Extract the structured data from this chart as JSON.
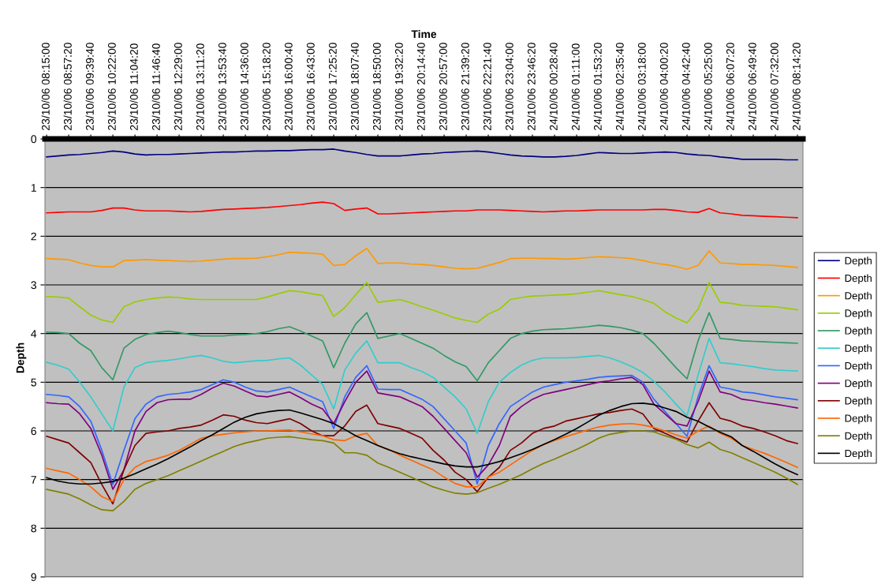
{
  "chart_data": {
    "type": "line",
    "xlabel": "Time",
    "ylabel": "Depth",
    "categories": [
      "23/10/06 08:15:00",
      null,
      "23/10/06 08:57:20",
      null,
      "23/10/06 09:39:40",
      null,
      "23/10/06 10:22:00",
      null,
      "23/10/06 11:04:20",
      null,
      "23/10/06 11:46:40",
      null,
      "23/10/06 12:29:00",
      null,
      "23/10/06 13:11:20",
      null,
      "23/10/06 13:53:40",
      null,
      "23/10/06 14:36:00",
      null,
      "23/10/06 15:18:20",
      null,
      "23/10/06 16:00:40",
      null,
      "23/10/06 16:43:00",
      null,
      "23/10/06 17:25:20",
      null,
      "23/10/06 18:07:40",
      null,
      "23/10/06 18:50:00",
      null,
      "23/10/06 19:32:20",
      null,
      "23/10/06 20:14:40",
      null,
      "23/10/06 20:57:00",
      null,
      "23/10/06 21:39:20",
      null,
      "23/10/06 22:21:40",
      null,
      "23/10/06 23:04:00",
      null,
      "23/10/06 23:46:20",
      null,
      "24/10/06 00:28:40",
      null,
      "24/10/06 01:11:00",
      null,
      "24/10/06 01:53:20",
      null,
      "24/10/06 02:35:40",
      null,
      "24/10/06 03:18:00",
      null,
      "24/10/06 04:00:20",
      null,
      "24/10/06 04:42:40",
      null,
      "24/10/06 05:25:00",
      null,
      "24/10/06 06:07:20",
      null,
      "24/10/06 06:49:40",
      null,
      "24/10/06 07:32:00",
      null,
      "24/10/06 08:14:20"
    ],
    "ylim": [
      9,
      0
    ],
    "yticks": [
      0,
      1,
      2,
      3,
      4,
      5,
      6,
      7,
      8,
      9
    ],
    "grid": "y",
    "legend": "right",
    "marker": "none",
    "line_style": "solid",
    "series": [
      {
        "name": "Depth",
        "color": "#000080",
        "values": [
          0.37,
          0.35,
          0.33,
          0.32,
          0.3,
          0.28,
          0.25,
          0.27,
          0.31,
          0.33,
          0.32,
          0.32,
          0.31,
          0.3,
          0.29,
          0.28,
          0.27,
          0.27,
          0.26,
          0.25,
          0.25,
          0.24,
          0.24,
          0.23,
          0.22,
          0.22,
          0.21,
          0.25,
          0.28,
          0.32,
          0.35,
          0.35,
          0.35,
          0.33,
          0.31,
          0.3,
          0.28,
          0.27,
          0.26,
          0.25,
          0.27,
          0.3,
          0.33,
          0.35,
          0.36,
          0.37,
          0.37,
          0.36,
          0.34,
          0.31,
          0.28,
          0.29,
          0.3,
          0.3,
          0.29,
          0.28,
          0.27,
          0.28,
          0.31,
          0.33,
          0.34,
          0.37,
          0.39,
          0.42,
          0.42,
          0.42,
          0.42,
          0.43,
          0.43
        ]
      },
      {
        "name": "Depth",
        "color": "#ff0000",
        "values": [
          1.52,
          1.51,
          1.5,
          1.5,
          1.5,
          1.47,
          1.42,
          1.42,
          1.46,
          1.48,
          1.48,
          1.48,
          1.49,
          1.5,
          1.49,
          1.47,
          1.45,
          1.44,
          1.43,
          1.42,
          1.41,
          1.39,
          1.37,
          1.35,
          1.32,
          1.3,
          1.33,
          1.47,
          1.44,
          1.42,
          1.54,
          1.54,
          1.53,
          1.52,
          1.51,
          1.5,
          1.49,
          1.48,
          1.48,
          1.46,
          1.46,
          1.46,
          1.47,
          1.48,
          1.49,
          1.5,
          1.49,
          1.48,
          1.48,
          1.47,
          1.46,
          1.46,
          1.46,
          1.46,
          1.46,
          1.45,
          1.45,
          1.47,
          1.5,
          1.51,
          1.43,
          1.52,
          1.54,
          1.57,
          1.58,
          1.59,
          1.6,
          1.61,
          1.62
        ]
      },
      {
        "name": "Depth",
        "color": "#ff9900",
        "values": [
          2.46,
          2.47,
          2.48,
          2.55,
          2.6,
          2.63,
          2.63,
          2.5,
          2.49,
          2.48,
          2.49,
          2.5,
          2.51,
          2.52,
          2.51,
          2.49,
          2.47,
          2.46,
          2.46,
          2.45,
          2.42,
          2.38,
          2.33,
          2.34,
          2.35,
          2.37,
          2.6,
          2.58,
          2.4,
          2.25,
          2.56,
          2.55,
          2.55,
          2.57,
          2.58,
          2.6,
          2.63,
          2.66,
          2.67,
          2.66,
          2.6,
          2.54,
          2.46,
          2.45,
          2.45,
          2.46,
          2.46,
          2.47,
          2.46,
          2.44,
          2.42,
          2.43,
          2.44,
          2.46,
          2.5,
          2.55,
          2.58,
          2.62,
          2.68,
          2.6,
          2.3,
          2.55,
          2.56,
          2.58,
          2.58,
          2.59,
          2.6,
          2.62,
          2.64
        ]
      },
      {
        "name": "Depth",
        "color": "#99cc00",
        "values": [
          3.24,
          3.25,
          3.27,
          3.45,
          3.62,
          3.72,
          3.77,
          3.45,
          3.35,
          3.3,
          3.27,
          3.25,
          3.26,
          3.29,
          3.3,
          3.3,
          3.3,
          3.3,
          3.3,
          3.3,
          3.25,
          3.18,
          3.12,
          3.14,
          3.18,
          3.22,
          3.65,
          3.47,
          3.2,
          2.95,
          3.36,
          3.33,
          3.3,
          3.37,
          3.45,
          3.52,
          3.6,
          3.68,
          3.73,
          3.77,
          3.6,
          3.5,
          3.3,
          3.26,
          3.23,
          3.22,
          3.21,
          3.2,
          3.18,
          3.15,
          3.12,
          3.16,
          3.2,
          3.24,
          3.3,
          3.38,
          3.55,
          3.68,
          3.78,
          3.5,
          2.95,
          3.36,
          3.38,
          3.42,
          3.43,
          3.44,
          3.45,
          3.48,
          3.51
        ]
      },
      {
        "name": "Depth",
        "color": "#339966",
        "values": [
          3.97,
          3.98,
          4.0,
          4.2,
          4.35,
          4.7,
          4.95,
          4.3,
          4.12,
          4.02,
          3.98,
          3.95,
          3.98,
          4.02,
          4.05,
          4.05,
          4.05,
          4.03,
          4.02,
          4.0,
          3.96,
          3.9,
          3.86,
          3.95,
          4.05,
          4.15,
          4.7,
          4.2,
          3.8,
          3.57,
          4.1,
          4.05,
          4.0,
          4.1,
          4.2,
          4.3,
          4.45,
          4.58,
          4.68,
          4.97,
          4.6,
          4.35,
          4.1,
          4.0,
          3.95,
          3.92,
          3.91,
          3.9,
          3.88,
          3.86,
          3.83,
          3.85,
          3.88,
          3.93,
          4.0,
          4.2,
          4.45,
          4.7,
          4.93,
          4.15,
          3.57,
          4.1,
          4.12,
          4.15,
          4.16,
          4.17,
          4.18,
          4.19,
          4.2
        ]
      },
      {
        "name": "Depth",
        "color": "#33cccc",
        "values": [
          4.59,
          4.65,
          4.73,
          5.0,
          5.3,
          5.65,
          6.0,
          5.1,
          4.7,
          4.6,
          4.57,
          4.55,
          4.52,
          4.48,
          4.45,
          4.5,
          4.57,
          4.6,
          4.58,
          4.56,
          4.55,
          4.52,
          4.5,
          4.65,
          4.85,
          5.05,
          5.55,
          4.75,
          4.4,
          4.15,
          4.6,
          4.6,
          4.6,
          4.7,
          4.78,
          4.9,
          5.1,
          5.3,
          5.55,
          6.05,
          5.4,
          5.0,
          4.8,
          4.65,
          4.55,
          4.5,
          4.5,
          4.5,
          4.49,
          4.47,
          4.45,
          4.5,
          4.58,
          4.68,
          4.8,
          4.98,
          5.2,
          5.45,
          5.69,
          4.85,
          4.1,
          4.6,
          4.62,
          4.65,
          4.68,
          4.72,
          4.75,
          4.76,
          4.77
        ]
      },
      {
        "name": "Depth",
        "color": "#3366ff",
        "values": [
          5.25,
          5.27,
          5.3,
          5.5,
          5.8,
          6.4,
          7.1,
          6.4,
          5.75,
          5.45,
          5.3,
          5.25,
          5.23,
          5.2,
          5.15,
          5.05,
          4.95,
          5.0,
          5.1,
          5.18,
          5.2,
          5.15,
          5.1,
          5.2,
          5.3,
          5.4,
          5.95,
          5.3,
          4.9,
          4.66,
          5.14,
          5.15,
          5.15,
          5.25,
          5.35,
          5.5,
          5.75,
          6.0,
          6.25,
          7.09,
          6.3,
          5.85,
          5.5,
          5.35,
          5.2,
          5.1,
          5.05,
          5.0,
          4.97,
          4.94,
          4.9,
          4.88,
          4.87,
          4.86,
          5.0,
          5.35,
          5.6,
          5.85,
          6.11,
          5.3,
          4.66,
          5.1,
          5.14,
          5.2,
          5.22,
          5.26,
          5.3,
          5.33,
          5.36
        ]
      },
      {
        "name": "Depth",
        "color": "#800080",
        "values": [
          5.42,
          5.44,
          5.45,
          5.65,
          5.95,
          6.5,
          7.2,
          6.8,
          6.0,
          5.6,
          5.42,
          5.36,
          5.35,
          5.35,
          5.25,
          5.12,
          5.02,
          5.08,
          5.18,
          5.28,
          5.3,
          5.25,
          5.2,
          5.32,
          5.45,
          5.55,
          5.85,
          5.4,
          5.0,
          4.77,
          5.22,
          5.26,
          5.3,
          5.4,
          5.5,
          5.7,
          5.95,
          6.2,
          6.45,
          6.95,
          6.7,
          6.3,
          5.7,
          5.5,
          5.35,
          5.25,
          5.2,
          5.15,
          5.1,
          5.05,
          5.0,
          4.97,
          4.93,
          4.9,
          5.05,
          5.45,
          5.65,
          5.85,
          5.9,
          5.4,
          4.77,
          5.2,
          5.25,
          5.35,
          5.38,
          5.42,
          5.45,
          5.49,
          5.53
        ]
      },
      {
        "name": "Depth",
        "color": "#800000",
        "values": [
          6.11,
          6.18,
          6.25,
          6.45,
          6.65,
          7.1,
          7.5,
          6.8,
          6.3,
          6.05,
          6.02,
          6.0,
          5.95,
          5.92,
          5.88,
          5.78,
          5.67,
          5.7,
          5.78,
          5.83,
          5.85,
          5.8,
          5.75,
          5.85,
          6.0,
          6.1,
          6.1,
          5.9,
          5.6,
          5.47,
          5.85,
          5.9,
          5.95,
          6.05,
          6.15,
          6.4,
          6.6,
          6.85,
          7.0,
          7.25,
          6.95,
          6.75,
          6.4,
          6.25,
          6.05,
          5.95,
          5.9,
          5.8,
          5.75,
          5.7,
          5.65,
          5.62,
          5.58,
          5.55,
          5.65,
          5.95,
          6.05,
          6.15,
          6.23,
          5.8,
          5.42,
          5.74,
          5.8,
          5.9,
          5.95,
          6.02,
          6.1,
          6.2,
          6.26
        ]
      },
      {
        "name": "Depth",
        "color": "#ff6600",
        "values": [
          6.77,
          6.82,
          6.87,
          7.0,
          7.15,
          7.35,
          7.45,
          7.0,
          6.75,
          6.63,
          6.57,
          6.5,
          6.4,
          6.28,
          6.15,
          6.1,
          6.07,
          6.04,
          6.02,
          6.0,
          6.0,
          5.99,
          5.98,
          6.02,
          6.06,
          6.1,
          6.18,
          6.2,
          6.1,
          6.05,
          6.3,
          6.38,
          6.5,
          6.6,
          6.7,
          6.8,
          6.95,
          7.08,
          7.15,
          7.15,
          6.95,
          6.85,
          6.7,
          6.55,
          6.4,
          6.28,
          6.2,
          6.12,
          6.05,
          5.98,
          5.92,
          5.88,
          5.86,
          5.85,
          5.88,
          5.93,
          6.0,
          6.08,
          6.15,
          6.0,
          5.9,
          6.05,
          6.15,
          6.3,
          6.38,
          6.46,
          6.55,
          6.65,
          6.75
        ]
      },
      {
        "name": "Depth",
        "color": "#808000",
        "values": [
          7.2,
          7.25,
          7.3,
          7.4,
          7.52,
          7.62,
          7.64,
          7.45,
          7.2,
          7.08,
          7.0,
          6.92,
          6.82,
          6.72,
          6.62,
          6.52,
          6.42,
          6.32,
          6.25,
          6.2,
          6.15,
          6.13,
          6.12,
          6.15,
          6.18,
          6.2,
          6.25,
          6.45,
          6.45,
          6.5,
          6.66,
          6.75,
          6.85,
          6.95,
          7.05,
          7.15,
          7.22,
          7.28,
          7.3,
          7.27,
          7.18,
          7.1,
          7.0,
          6.9,
          6.78,
          6.67,
          6.58,
          6.48,
          6.38,
          6.27,
          6.15,
          6.07,
          6.03,
          6.0,
          6.0,
          6.02,
          6.1,
          6.17,
          6.28,
          6.35,
          6.23,
          6.38,
          6.45,
          6.55,
          6.65,
          6.75,
          6.85,
          6.97,
          7.1
        ]
      },
      {
        "name": "Depth",
        "color": "#000000",
        "values": [
          6.96,
          7.03,
          7.07,
          7.09,
          7.09,
          7.07,
          7.04,
          6.97,
          6.88,
          6.78,
          6.68,
          6.57,
          6.45,
          6.33,
          6.2,
          6.08,
          5.95,
          5.82,
          5.72,
          5.65,
          5.61,
          5.58,
          5.57,
          5.63,
          5.7,
          5.77,
          5.85,
          5.97,
          6.1,
          6.2,
          6.3,
          6.39,
          6.47,
          6.53,
          6.58,
          6.63,
          6.68,
          6.72,
          6.74,
          6.74,
          6.69,
          6.63,
          6.55,
          6.47,
          6.38,
          6.28,
          6.18,
          6.07,
          5.95,
          5.82,
          5.68,
          5.58,
          5.5,
          5.44,
          5.43,
          5.46,
          5.53,
          5.6,
          5.72,
          5.8,
          5.92,
          6.03,
          6.12,
          6.3,
          6.42,
          6.55,
          6.68,
          6.8,
          6.9
        ]
      }
    ]
  }
}
